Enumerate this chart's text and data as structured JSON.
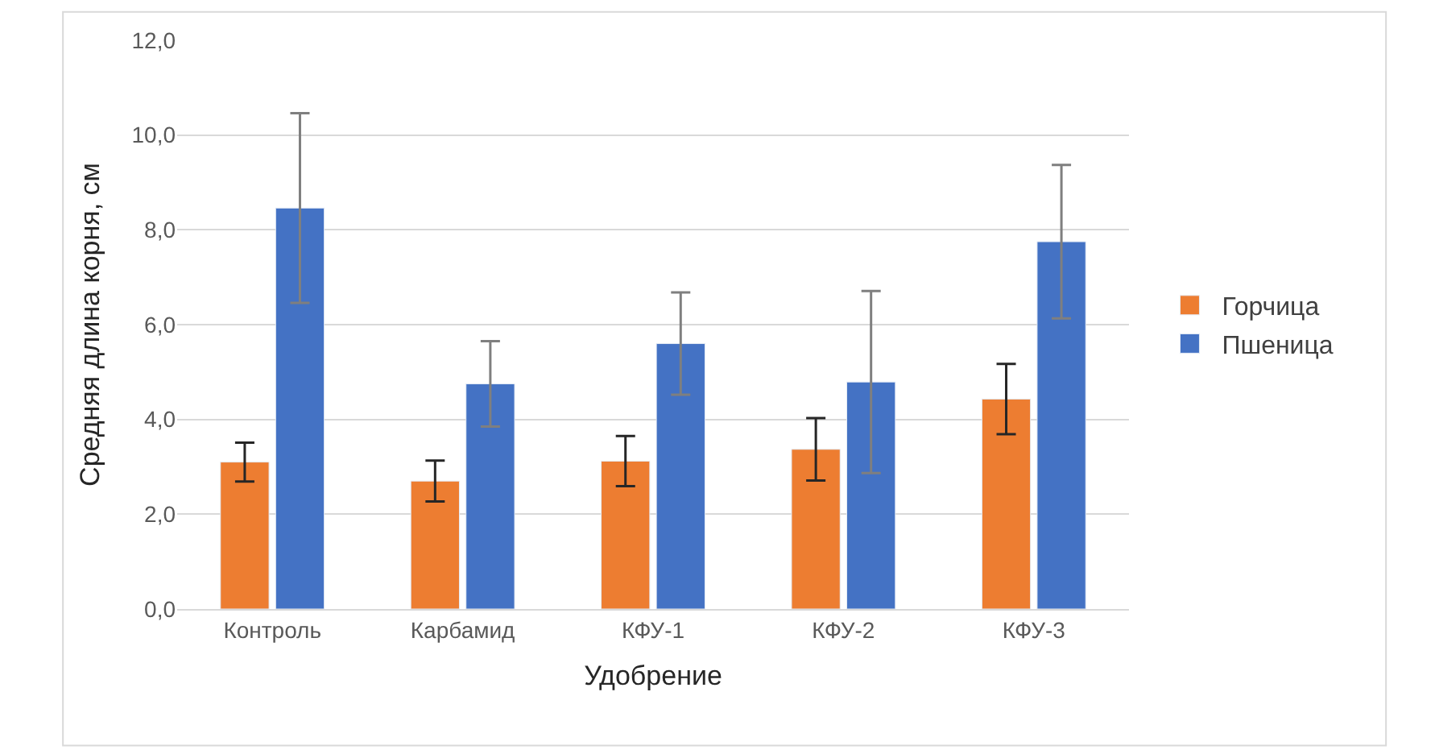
{
  "chart_data": {
    "type": "bar",
    "xlabel": "Удобрение",
    "ylabel": "Средняя длина корня, см",
    "categories": [
      "Контроль",
      "Карбамид",
      "КФУ-1",
      "КФУ-2",
      "КФУ-3"
    ],
    "series": [
      {
        "name": "Горчица",
        "color": "#ed7d31",
        "values": [
          3.1,
          2.7,
          3.12,
          3.37,
          4.43
        ],
        "errors": [
          0.41,
          0.43,
          0.53,
          0.66,
          0.74
        ]
      },
      {
        "name": "Пшеница",
        "color": "#4472c4",
        "values": [
          8.46,
          4.75,
          5.6,
          4.79,
          7.75
        ],
        "errors": [
          2.0,
          0.9,
          1.08,
          1.92,
          1.62
        ]
      }
    ],
    "ylim": [
      0,
      12
    ],
    "yticks": [
      {
        "value": 0,
        "label": "0,0"
      },
      {
        "value": 2,
        "label": "2,0"
      },
      {
        "value": 4,
        "label": "4,0"
      },
      {
        "value": 6,
        "label": "6,0"
      },
      {
        "value": 8,
        "label": "8,0"
      },
      {
        "value": 10,
        "label": "10,0"
      },
      {
        "value": 12,
        "label": "12,0"
      }
    ],
    "grid": "y",
    "legend": "right"
  }
}
